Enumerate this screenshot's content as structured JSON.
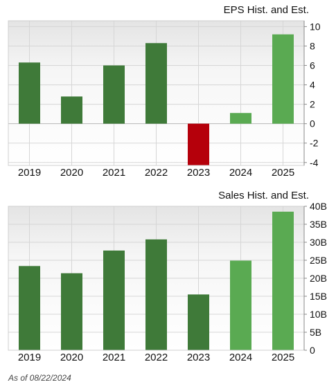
{
  "chart_data": [
    {
      "type": "bar",
      "title": "EPS Hist. and Est.",
      "categories": [
        "2019",
        "2020",
        "2021",
        "2022",
        "2023",
        "2024",
        "2025"
      ],
      "values": [
        6.3,
        2.8,
        6.0,
        8.3,
        -4.5,
        1.1,
        9.2
      ],
      "bar_kinds": [
        "historical",
        "historical",
        "historical",
        "historical",
        "negative",
        "estimate",
        "estimate"
      ],
      "ylim": [
        -4.3,
        10.6
      ],
      "yticks": [
        -4,
        -2,
        0,
        2,
        4,
        6,
        8,
        10
      ],
      "ytick_labels": [
        "-4",
        "-2",
        "0",
        "2",
        "4",
        "6",
        "8",
        "10"
      ],
      "y_axis_side": "right",
      "grid": true
    },
    {
      "type": "bar",
      "title": "Sales Hist. and Est.",
      "categories": [
        "2019",
        "2020",
        "2021",
        "2022",
        "2023",
        "2024",
        "2025"
      ],
      "values": [
        23.4,
        21.4,
        27.7,
        30.8,
        15.5,
        24.9,
        38.5
      ],
      "unit": "B",
      "bar_kinds": [
        "historical",
        "historical",
        "historical",
        "historical",
        "historical",
        "estimate",
        "estimate"
      ],
      "ylim": [
        0,
        40
      ],
      "yticks": [
        0,
        5,
        10,
        15,
        20,
        25,
        30,
        35,
        40
      ],
      "ytick_labels": [
        "0",
        "5B",
        "10B",
        "15B",
        "20B",
        "25B",
        "30B",
        "35B",
        "40B"
      ],
      "y_axis_side": "right",
      "grid": true
    }
  ],
  "colors": {
    "historical": "#3f7a39",
    "estimate": "#5aaa52",
    "negative": "#b5000b",
    "grid": "#d6d6d6",
    "axis": "#8a8a8a"
  },
  "footer": {
    "as_of": "As of 08/22/2024"
  }
}
